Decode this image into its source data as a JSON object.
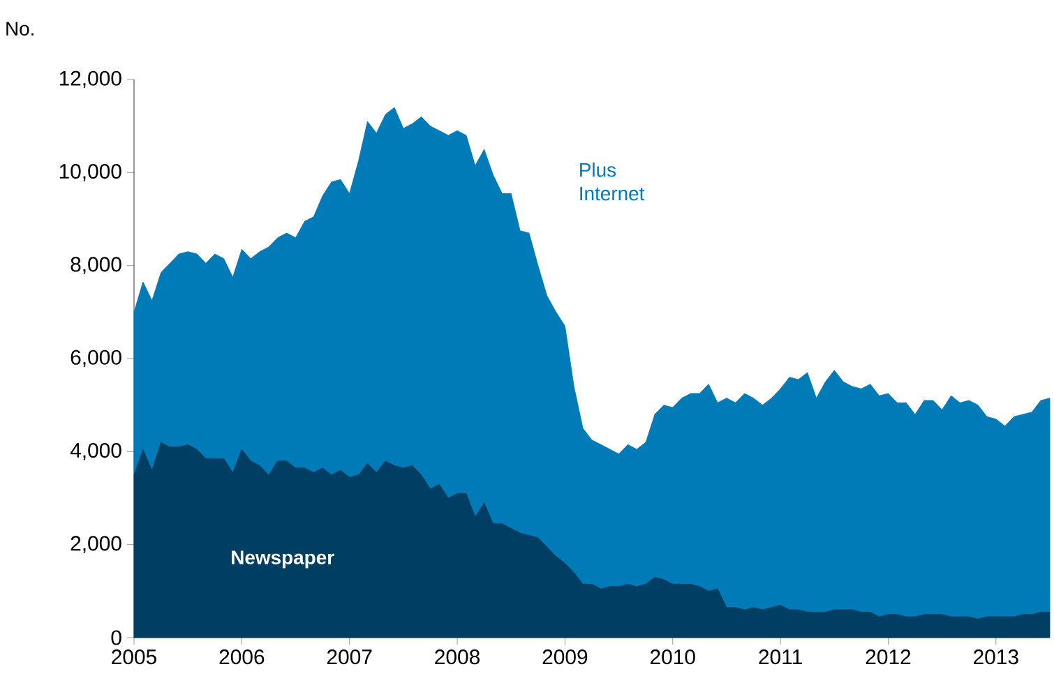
{
  "chart_data": {
    "type": "area",
    "stacked": true,
    "ylabel": "No.",
    "x": [
      "2005-01",
      "2005-02",
      "2005-03",
      "2005-04",
      "2005-05",
      "2005-06",
      "2005-07",
      "2005-08",
      "2005-09",
      "2005-10",
      "2005-11",
      "2005-12",
      "2006-01",
      "2006-02",
      "2006-03",
      "2006-04",
      "2006-05",
      "2006-06",
      "2006-07",
      "2006-08",
      "2006-09",
      "2006-10",
      "2006-11",
      "2006-12",
      "2007-01",
      "2007-02",
      "2007-03",
      "2007-04",
      "2007-05",
      "2007-06",
      "2007-07",
      "2007-08",
      "2007-09",
      "2007-10",
      "2007-11",
      "2007-12",
      "2008-01",
      "2008-02",
      "2008-03",
      "2008-04",
      "2008-05",
      "2008-06",
      "2008-07",
      "2008-08",
      "2008-09",
      "2008-10",
      "2008-11",
      "2008-12",
      "2009-01",
      "2009-02",
      "2009-03",
      "2009-04",
      "2009-05",
      "2009-06",
      "2009-07",
      "2009-08",
      "2009-09",
      "2009-10",
      "2009-11",
      "2009-12",
      "2010-01",
      "2010-02",
      "2010-03",
      "2010-04",
      "2010-05",
      "2010-06",
      "2010-07",
      "2010-08",
      "2010-09",
      "2010-10",
      "2010-11",
      "2010-12",
      "2011-01",
      "2011-02",
      "2011-03",
      "2011-04",
      "2011-05",
      "2011-06",
      "2011-07",
      "2011-08",
      "2011-09",
      "2011-10",
      "2011-11",
      "2011-12",
      "2012-01",
      "2012-02",
      "2012-03",
      "2012-04",
      "2012-05",
      "2012-06",
      "2012-07",
      "2012-08",
      "2012-09",
      "2012-10",
      "2012-11",
      "2012-12",
      "2013-01",
      "2013-02",
      "2013-03",
      "2013-04",
      "2013-05",
      "2013-06",
      "2013-07"
    ],
    "series": [
      {
        "name": "Newspaper",
        "color": "#003f63",
        "values": [
          3500,
          4050,
          3600,
          4200,
          4100,
          4100,
          4150,
          4050,
          3850,
          3850,
          3850,
          3550,
          4050,
          3800,
          3700,
          3500,
          3800,
          3800,
          3650,
          3650,
          3550,
          3650,
          3500,
          3600,
          3450,
          3500,
          3750,
          3550,
          3800,
          3700,
          3650,
          3700,
          3500,
          3200,
          3300,
          3000,
          3100,
          3100,
          2600,
          2900,
          2450,
          2450,
          2350,
          2250,
          2200,
          2150,
          1950,
          1750,
          1600,
          1400,
          1150,
          1150,
          1050,
          1100,
          1100,
          1150,
          1100,
          1150,
          1300,
          1250,
          1150,
          1150,
          1150,
          1100,
          1000,
          1050,
          650,
          650,
          600,
          650,
          600,
          650,
          700,
          600,
          600,
          550,
          550,
          550,
          600,
          600,
          600,
          550,
          550,
          450,
          500,
          500,
          450,
          450,
          500,
          500,
          500,
          450,
          450,
          450,
          400,
          450,
          450,
          450,
          450,
          500,
          500,
          550,
          550
        ]
      },
      {
        "name": "Plus Internet",
        "color": "#007bb8",
        "values": [
          3500,
          3600,
          3650,
          3650,
          3950,
          4150,
          4150,
          4200,
          4200,
          4400,
          4300,
          4200,
          4300,
          4350,
          4600,
          4900,
          4800,
          4900,
          4950,
          5300,
          5500,
          5850,
          6300,
          6250,
          6100,
          6750,
          7350,
          7300,
          7450,
          7700,
          7300,
          7350,
          7700,
          7800,
          7600,
          7800,
          7800,
          7700,
          7550,
          7600,
          7500,
          7100,
          7200,
          6500,
          6500,
          5850,
          5400,
          5250,
          5100,
          4000,
          3350,
          3100,
          3100,
          2950,
          2850,
          3000,
          2950,
          3050,
          3500,
          3750,
          3800,
          4000,
          4100,
          4150,
          4450,
          4000,
          4500,
          4400,
          4650,
          4500,
          4400,
          4500,
          4650,
          5000,
          4950,
          5150,
          4600,
          4950,
          5150,
          4900,
          4800,
          4800,
          4900,
          4750,
          4750,
          4550,
          4600,
          4350,
          4600,
          4600,
          4400,
          4750,
          4600,
          4650,
          4600,
          4300,
          4250,
          4100,
          4300,
          4300,
          4350,
          4550,
          4600
        ]
      }
    ],
    "xlim": [
      "2005-01",
      "2013-07"
    ],
    "xticks": [
      "2005",
      "2006",
      "2007",
      "2008",
      "2009",
      "2010",
      "2011",
      "2012",
      "2013"
    ],
    "ylim": [
      0,
      12000
    ],
    "yticks": [
      {
        "value": 0,
        "label": "0"
      },
      {
        "value": 2000,
        "label": "2,000"
      },
      {
        "value": 4000,
        "label": "4,000"
      },
      {
        "value": 6000,
        "label": "6,000"
      },
      {
        "value": 8000,
        "label": "8,000"
      },
      {
        "value": 10000,
        "label": "10,000"
      },
      {
        "value": 12000,
        "label": "12,000"
      }
    ],
    "grid": false,
    "legend": false
  }
}
